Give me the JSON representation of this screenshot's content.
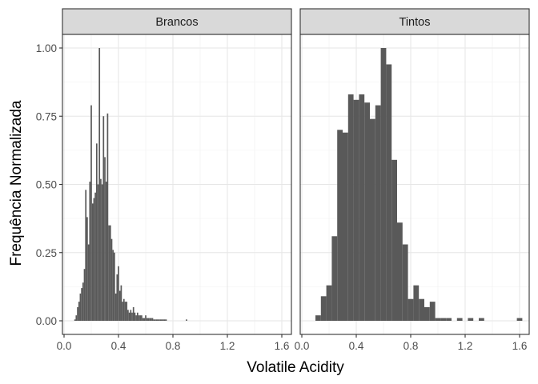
{
  "chart_data": {
    "type": "bar",
    "xlabel": "Volatile Acidity",
    "ylabel": "Frequência Normalizada",
    "xlim": [
      0,
      1.65
    ],
    "ylim": [
      -0.05,
      1.06
    ],
    "xticks": [
      "0.0",
      "0.4",
      "0.8",
      "1.2",
      "1.6"
    ],
    "yticks": [
      "0.00",
      "0.25",
      "0.50",
      "0.75",
      "1.00"
    ],
    "grid": true,
    "bar_color": "#595959",
    "panels": [
      {
        "name": "Brancos",
        "bin_width": 0.01,
        "x": [
          0.08,
          0.09,
          0.1,
          0.11,
          0.12,
          0.13,
          0.14,
          0.15,
          0.16,
          0.17,
          0.18,
          0.19,
          0.2,
          0.21,
          0.22,
          0.23,
          0.24,
          0.25,
          0.26,
          0.27,
          0.28,
          0.29,
          0.3,
          0.31,
          0.32,
          0.33,
          0.34,
          0.35,
          0.36,
          0.37,
          0.38,
          0.39,
          0.4,
          0.41,
          0.42,
          0.43,
          0.44,
          0.45,
          0.46,
          0.47,
          0.48,
          0.49,
          0.5,
          0.51,
          0.52,
          0.53,
          0.54,
          0.55,
          0.56,
          0.57,
          0.58,
          0.59,
          0.6,
          0.61,
          0.62,
          0.63,
          0.64,
          0.65,
          0.66,
          0.67,
          0.68,
          0.69,
          0.7,
          0.71,
          0.72,
          0.73,
          0.74,
          0.75,
          0.76,
          0.77,
          0.78,
          0.79,
          0.8,
          0.81,
          0.82,
          0.83,
          0.84,
          0.85,
          0.86,
          0.87,
          0.88,
          0.89,
          0.9,
          0.91,
          0.92,
          0.93,
          0.94,
          0.95,
          0.96,
          0.97,
          0.98,
          0.99,
          1.0,
          1.01,
          1.02,
          1.03,
          1.04,
          1.05,
          1.06,
          1.07,
          1.08,
          1.09,
          1.1
        ],
        "values": [
          0.005,
          0.02,
          0.05,
          0.07,
          0.1,
          0.12,
          0.14,
          0.19,
          0.48,
          0.38,
          0.28,
          0.51,
          0.79,
          0.43,
          0.45,
          0.47,
          0.65,
          0.5,
          1.0,
          0.52,
          0.5,
          0.75,
          0.6,
          0.51,
          0.76,
          0.35,
          0.35,
          0.3,
          0.26,
          0.25,
          0.1,
          0.17,
          0.2,
          0.11,
          0.13,
          0.07,
          0.08,
          0.07,
          0.07,
          0.04,
          0.03,
          0.04,
          0.03,
          0.05,
          0.03,
          0.02,
          0.03,
          0.02,
          0.02,
          0.02,
          0.01,
          0.01,
          0.02,
          0.01,
          0.01,
          0.01,
          0.01,
          0.01,
          0.005,
          0.005,
          0.005,
          0.005,
          0.005,
          0.005,
          0.005,
          0.005,
          0.005,
          0.005,
          0,
          0,
          0,
          0,
          0,
          0,
          0,
          0,
          0,
          0,
          0,
          0,
          0,
          0,
          0.005,
          0,
          0,
          0,
          0,
          0,
          0,
          0,
          0,
          0,
          0,
          0,
          0,
          0,
          0,
          0,
          0,
          0,
          0,
          0,
          0
        ]
      },
      {
        "name": "Tintos",
        "bin_width": 0.04,
        "x": [
          0.12,
          0.16,
          0.2,
          0.24,
          0.28,
          0.32,
          0.36,
          0.4,
          0.44,
          0.48,
          0.52,
          0.56,
          0.6,
          0.64,
          0.68,
          0.72,
          0.76,
          0.8,
          0.84,
          0.88,
          0.92,
          0.96,
          1.0,
          1.04,
          1.08,
          1.12,
          1.16,
          1.2,
          1.24,
          1.28,
          1.32,
          1.36,
          1.4,
          1.44,
          1.48,
          1.52,
          1.56,
          1.6
        ],
        "values": [
          0.02,
          0.09,
          0.13,
          0.31,
          0.7,
          0.69,
          0.83,
          0.81,
          0.83,
          0.8,
          0.74,
          0.79,
          1.0,
          0.94,
          0.59,
          0.36,
          0.28,
          0.08,
          0.13,
          0.08,
          0.05,
          0.07,
          0.01,
          0.01,
          0.01,
          0.0,
          0.01,
          0.0,
          0.01,
          0.0,
          0.01,
          0.0,
          0.0,
          0.0,
          0.0,
          0.0,
          0.0,
          0.01
        ]
      }
    ]
  }
}
